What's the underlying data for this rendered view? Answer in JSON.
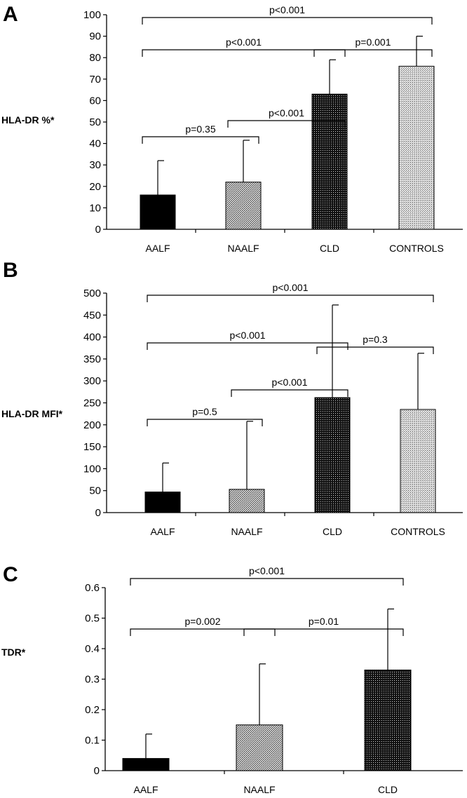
{
  "chart_data": [
    {
      "panel": "A",
      "type": "bar",
      "ylabel": "HLA-DR %*",
      "categories": [
        "AALF",
        "NAALF",
        "CLD",
        "CONTROLS"
      ],
      "values": [
        16,
        22,
        63,
        76
      ],
      "error_upper": [
        32,
        41.5,
        79,
        90
      ],
      "ylim": [
        0,
        100
      ],
      "yticks": [
        "0",
        "10",
        "20",
        "30",
        "40",
        "50",
        "60",
        "70",
        "80",
        "90",
        "100"
      ],
      "patterns": [
        "solid-black",
        "fine-grey",
        "dense-black",
        "fine-light-grey"
      ],
      "comparisons": [
        {
          "from": 0,
          "to": 3,
          "label": "p<0.001"
        },
        {
          "from": 0,
          "to": 2,
          "label": "p<0.001"
        },
        {
          "from": 2,
          "to": 3,
          "label": "p=0.001"
        },
        {
          "from": 1,
          "to": 2,
          "label": "p<0.001"
        },
        {
          "from": 0,
          "to": 1,
          "label": "p=0.35"
        }
      ]
    },
    {
      "panel": "B",
      "type": "bar",
      "ylabel": "HLA-DR MFI*",
      "categories": [
        "AALF",
        "NAALF",
        "CLD",
        "CONTROLS"
      ],
      "values": [
        47,
        53,
        262,
        235
      ],
      "error_upper": [
        113,
        208,
        473,
        363
      ],
      "ylim": [
        0,
        500
      ],
      "yticks": [
        "0",
        "50",
        "100",
        "150",
        "200",
        "250",
        "300",
        "350",
        "400",
        "450",
        "500"
      ],
      "patterns": [
        "solid-black",
        "fine-grey",
        "dense-black",
        "fine-light-grey"
      ],
      "comparisons": [
        {
          "from": 0,
          "to": 3,
          "label": "p<0.001"
        },
        {
          "from": 0,
          "to": 2,
          "label": "p<0.001"
        },
        {
          "from": 2,
          "to": 3,
          "label": "p=0.3"
        },
        {
          "from": 1,
          "to": 2,
          "label": "p<0.001"
        },
        {
          "from": 0,
          "to": 1,
          "label": "p=0.5"
        }
      ]
    },
    {
      "panel": "C",
      "type": "bar",
      "ylabel": "TDR*",
      "categories": [
        "AALF",
        "NAALF",
        "CLD"
      ],
      "values": [
        0.04,
        0.15,
        0.33
      ],
      "error_upper": [
        0.12,
        0.35,
        0.53
      ],
      "ylim": [
        0,
        0.6
      ],
      "yticks": [
        "0",
        "0.1",
        "0.2",
        "0.3",
        "0.4",
        "0.5",
        "0.6"
      ],
      "patterns": [
        "solid-black",
        "fine-grey",
        "dense-black"
      ],
      "comparisons": [
        {
          "from": 0,
          "to": 2,
          "label": "p<0.001"
        },
        {
          "from": 1,
          "to": 2,
          "label": "p=0.01"
        },
        {
          "from": 0,
          "to": 1,
          "label": "p=0.002"
        }
      ]
    }
  ]
}
